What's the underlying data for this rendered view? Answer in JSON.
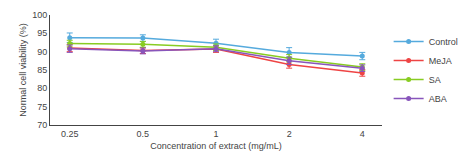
{
  "chart_data": {
    "type": "line",
    "xlabel": "Concentration of extract (mg/mL)",
    "ylabel": "Normal cell viability (%)",
    "categories": [
      "0.25",
      "0.5",
      "1",
      "2",
      "4"
    ],
    "series": [
      {
        "name": "Control",
        "color": "#55aadd",
        "values": [
          93.8,
          93.7,
          92.3,
          89.8,
          88.8
        ],
        "errors": [
          1.3,
          0.9,
          1.1,
          1.3,
          1.0
        ]
      },
      {
        "name": "MeJA",
        "color": "#ee4444",
        "values": [
          91.0,
          90.3,
          90.7,
          86.5,
          84.2
        ],
        "errors": [
          1.0,
          0.8,
          0.9,
          1.0,
          0.9
        ]
      },
      {
        "name": "SA",
        "color": "#88cc22",
        "values": [
          92.2,
          92.0,
          91.2,
          88.2,
          85.8
        ],
        "errors": [
          0.9,
          0.8,
          0.9,
          1.0,
          0.9
        ]
      },
      {
        "name": "ABA",
        "color": "#8855bb",
        "values": [
          90.8,
          90.2,
          90.8,
          87.5,
          85.5
        ],
        "errors": [
          1.0,
          0.8,
          0.8,
          1.0,
          0.9
        ]
      }
    ],
    "ylim": [
      70,
      100
    ],
    "yticks": [
      70,
      75,
      80,
      85,
      90,
      95,
      100
    ],
    "marker": "circle",
    "line_style": "solid",
    "grid": false,
    "legend": "right"
  }
}
